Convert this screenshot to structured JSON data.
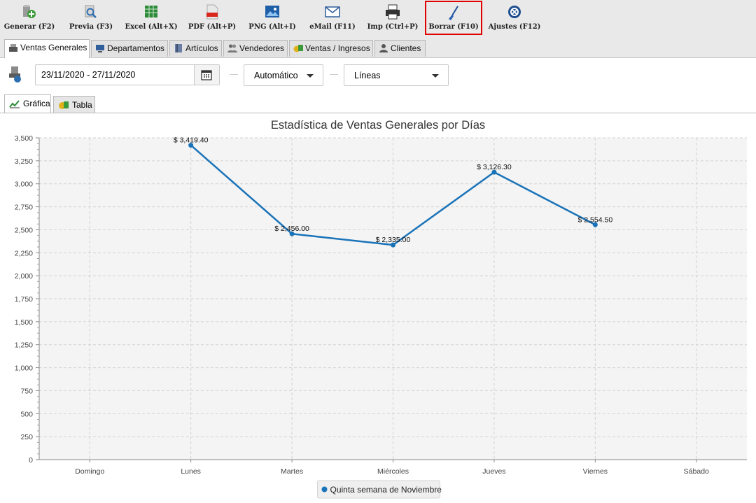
{
  "toolbar": {
    "buttons": [
      {
        "id": "generar",
        "label": "Generar (F2)",
        "icon": "generate-icon"
      },
      {
        "id": "previa",
        "label": "Previa (F3)",
        "icon": "preview-icon"
      },
      {
        "id": "excel",
        "label": "Excel (Alt+X)",
        "icon": "excel-icon"
      },
      {
        "id": "pdf",
        "label": "PDF (Alt+P)",
        "icon": "pdf-icon"
      },
      {
        "id": "png",
        "label": "PNG (Alt+I)",
        "icon": "image-icon"
      },
      {
        "id": "email",
        "label": "eMail (F11)",
        "icon": "envelope-icon"
      },
      {
        "id": "imp",
        "label": "Imp (Ctrl+P)",
        "icon": "printer-icon"
      },
      {
        "id": "borrar",
        "label": "Borrar (F10)",
        "icon": "broom-icon",
        "highlighted": true
      },
      {
        "id": "ajustes",
        "label": "Ajustes (F12)",
        "icon": "gear-icon"
      }
    ],
    "highlight_color": "#e00000"
  },
  "tabs": {
    "items": [
      {
        "label": "Ventas Generales",
        "icon": "cash-register-icon",
        "active": true
      },
      {
        "label": "Departamentos",
        "icon": "monitor-icon"
      },
      {
        "label": "Artículos",
        "icon": "book-icon"
      },
      {
        "label": "Vendedores",
        "icon": "people-icon"
      },
      {
        "label": "Ventas / Ingresos",
        "icon": "money-icon"
      },
      {
        "label": "Clientes",
        "icon": "person-icon"
      }
    ]
  },
  "filters": {
    "date_range": "23/11/2020 - 27/11/2020",
    "mode": "Automático",
    "chart_style": "Líneas"
  },
  "subtabs": {
    "items": [
      {
        "label": "Gráfica",
        "icon": "line-chart-icon",
        "active": true
      },
      {
        "label": "Tabla",
        "icon": "table-icon"
      }
    ]
  },
  "chart_data": {
    "type": "line",
    "title": "Estadística de Ventas Generales por Días",
    "categories": [
      "Domingo",
      "Lunes",
      "Martes",
      "Miércoles",
      "Jueves",
      "Viernes",
      "Sábado"
    ],
    "series": [
      {
        "name": "Quinta semana de Noviembre",
        "values": [
          null,
          3419.4,
          2456.0,
          2335.0,
          3126.3,
          2554.5,
          null
        ],
        "labels": [
          "",
          "$ 3,419.40",
          "$ 2,456.00",
          "$ 2,335.00",
          "$ 3,126.30",
          "$ 2,554.50",
          ""
        ],
        "color": "#1a73b8"
      }
    ],
    "y_ticks": [
      "0",
      "250",
      "500",
      "750",
      "1,000",
      "1,250",
      "1,500",
      "1,750",
      "2,000",
      "2,250",
      "2,500",
      "2,750",
      "3,000",
      "3,250",
      "3,500"
    ],
    "ylim": [
      0,
      3500
    ],
    "grid": true,
    "legend_position": "bottom"
  }
}
